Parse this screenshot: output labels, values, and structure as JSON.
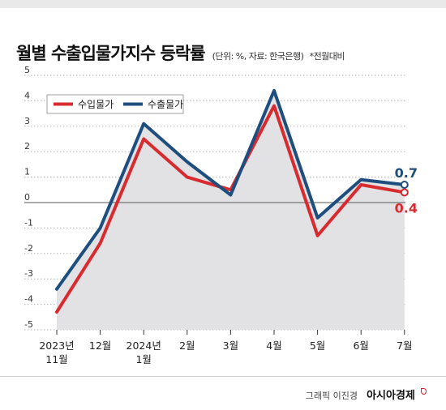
{
  "header": {
    "title": "월별 수출입물가지수 등락률",
    "subtitle": "(단위: %, 자료: 한국은행)",
    "note": "*전월대비"
  },
  "footer": {
    "credit_label": "그래픽 이진경",
    "credit_brand": "아시아경제"
  },
  "colors": {
    "import": "#d82b2f",
    "export": "#1d4e7e",
    "fill": "#e2e2e4"
  },
  "chart_data": {
    "type": "line",
    "categories": [
      [
        "2023년",
        "11월"
      ],
      [
        "12월"
      ],
      [
        "2024년",
        "1월"
      ],
      [
        "2월"
      ],
      [
        "3월"
      ],
      [
        "4월"
      ],
      [
        "5월"
      ],
      [
        "6월"
      ],
      [
        "7월"
      ]
    ],
    "series": [
      {
        "name": "수입물가",
        "values": [
          -4.3,
          -1.6,
          2.5,
          1.0,
          0.5,
          3.8,
          -1.3,
          0.7,
          0.4
        ],
        "color": "#d82b2f"
      },
      {
        "name": "수출물가",
        "values": [
          -3.4,
          -1.0,
          3.1,
          1.6,
          0.3,
          4.4,
          -0.6,
          0.9,
          0.7
        ],
        "color": "#1d4e7e"
      }
    ],
    "yticks": [
      5,
      4,
      3,
      2,
      1,
      0,
      -1,
      -2,
      -3,
      -4,
      -5
    ],
    "ylim": [
      -5,
      5
    ],
    "end_labels": {
      "export": "0.7",
      "import": "0.4"
    },
    "grid": true,
    "legend": "top-left"
  }
}
